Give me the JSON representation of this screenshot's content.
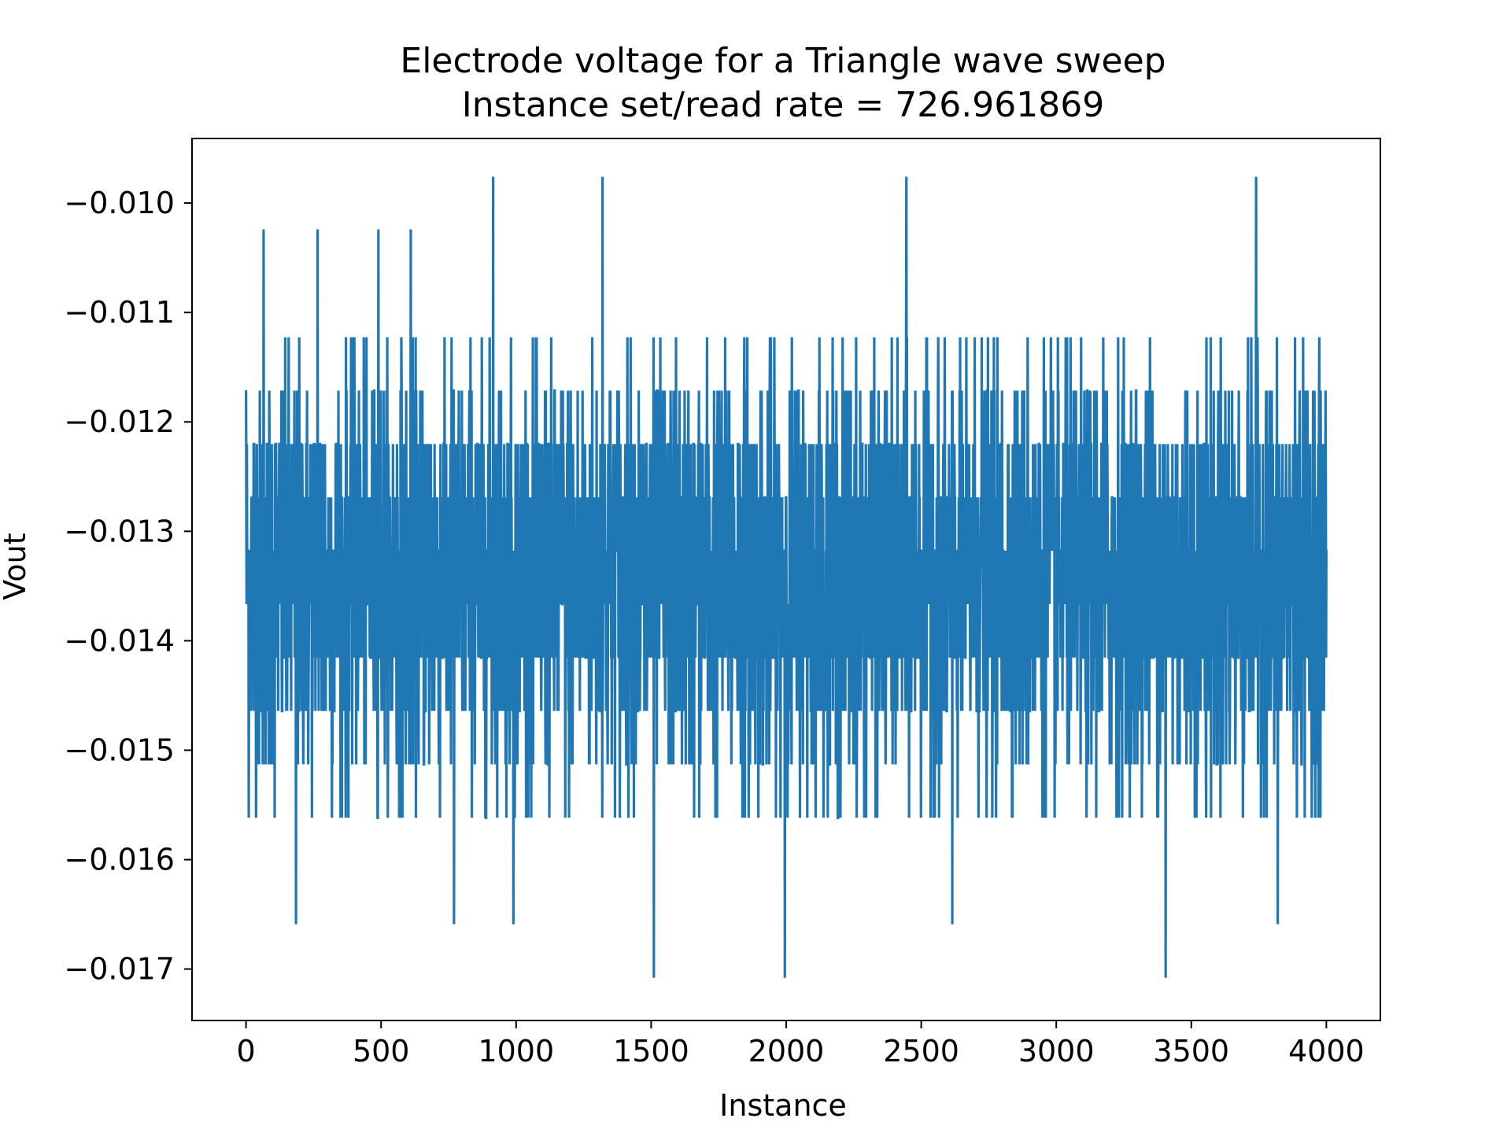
{
  "chart_data": {
    "type": "line",
    "title": "Electrode voltage for a Triangle wave sweep",
    "subtitle": "Instance set/read rate = 726.961869",
    "xlabel": "Instance",
    "ylabel": "Vout",
    "xlim": [
      -200,
      4200
    ],
    "ylim": [
      -0.01747,
      -0.00941
    ],
    "x_ticks": [
      0,
      500,
      1000,
      1500,
      2000,
      2500,
      3000,
      3500,
      4000
    ],
    "x_tick_labels": [
      "0",
      "500",
      "1000",
      "1500",
      "2000",
      "2500",
      "3000",
      "3500",
      "4000"
    ],
    "y_ticks": [
      -0.01,
      -0.011,
      -0.012,
      -0.013,
      -0.014,
      -0.015,
      -0.016,
      -0.017
    ],
    "y_tick_labels": [
      "−0.010",
      "−0.011",
      "−0.012",
      "−0.013",
      "−0.014",
      "−0.015",
      "−0.016",
      "−0.017"
    ],
    "grid": false,
    "legend": "none",
    "series_color": "#1f77b4",
    "series": [
      {
        "x_start": 0,
        "x_end": 4000,
        "n_points": 4001,
        "level_step": 0.000488,
        "typical_range": [
          -0.01513,
          -0.01171
        ],
        "max_value": -0.00976,
        "min_value": -0.01708,
        "sample_points": [
          {
            "x": 0,
            "y": -0.01171
          },
          {
            "x": 65,
            "y": -0.01024
          },
          {
            "x": 185,
            "y": -0.01659
          },
          {
            "x": 265,
            "y": -0.01024
          },
          {
            "x": 490,
            "y": -0.01024
          },
          {
            "x": 610,
            "y": -0.01024
          },
          {
            "x": 770,
            "y": -0.01659
          },
          {
            "x": 915,
            "y": -0.00976
          },
          {
            "x": 990,
            "y": -0.01659
          },
          {
            "x": 1320,
            "y": -0.00976
          },
          {
            "x": 1510,
            "y": -0.01708
          },
          {
            "x": 1995,
            "y": -0.01708
          },
          {
            "x": 2445,
            "y": -0.00976
          },
          {
            "x": 2615,
            "y": -0.01659
          },
          {
            "x": 3405,
            "y": -0.01708
          },
          {
            "x": 3740,
            "y": -0.00976
          },
          {
            "x": 3820,
            "y": -0.01659
          },
          {
            "x": 4000,
            "y": -0.01317
          }
        ]
      }
    ]
  }
}
